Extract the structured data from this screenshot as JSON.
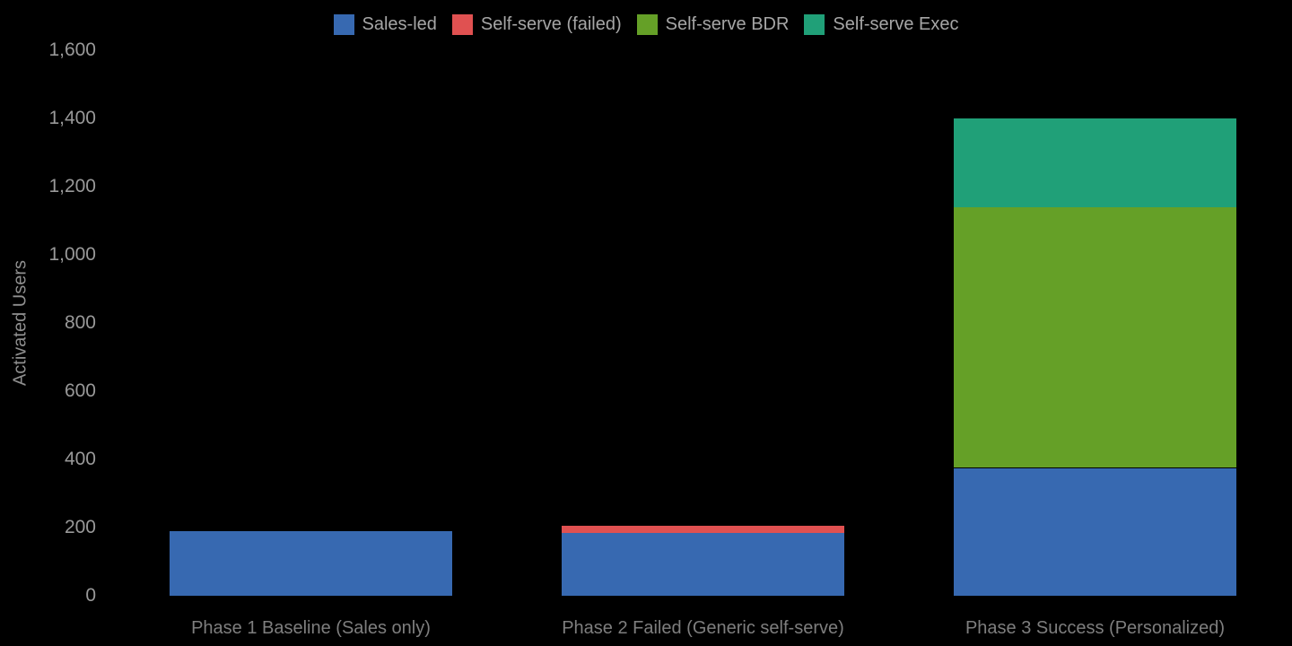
{
  "page": {
    "background": "#000000"
  },
  "chart_data": {
    "type": "bar",
    "stacked": true,
    "orientation": "vertical",
    "title": "",
    "xlabel": "",
    "ylabel": "Activated Users",
    "ylim": [
      0,
      1600
    ],
    "ytick_step": 200,
    "grid": false,
    "legend_position": "top-center",
    "background": "#000000",
    "categories": [
      "Phase 1 Baseline (Sales only)",
      "Phase 2 Failed (Generic self-serve)",
      "Phase 3 Success (Personalized)"
    ],
    "series": [
      {
        "name": "Sales-led",
        "color": "#3769b1",
        "values": [
          190,
          185,
          375
        ]
      },
      {
        "name": "Self-serve (failed)",
        "color": "#e05151",
        "values": [
          0,
          20,
          0
        ]
      },
      {
        "name": "Self-serve BDR",
        "color": "#65a027",
        "values": [
          0,
          0,
          765
        ]
      },
      {
        "name": "Self-serve Exec",
        "color": "#20a078",
        "values": [
          0,
          0,
          260
        ]
      }
    ],
    "category_totals": [
      190,
      205,
      1400
    ],
    "yticks": [
      {
        "value": 0,
        "label": "0"
      },
      {
        "value": 200,
        "label": "200"
      },
      {
        "value": 400,
        "label": "400"
      },
      {
        "value": 600,
        "label": "600"
      },
      {
        "value": 800,
        "label": "800"
      },
      {
        "value": 1000,
        "label": "1,000"
      },
      {
        "value": 1200,
        "label": "1,200"
      },
      {
        "value": 1400,
        "label": "1,400"
      },
      {
        "value": 1600,
        "label": "1,600"
      }
    ],
    "text_colors": {
      "tick_label": "#999999",
      "axis_title": "#8f8f8f",
      "category_label": "#7e7e7e",
      "legend_label": "#a6a6a6"
    }
  }
}
